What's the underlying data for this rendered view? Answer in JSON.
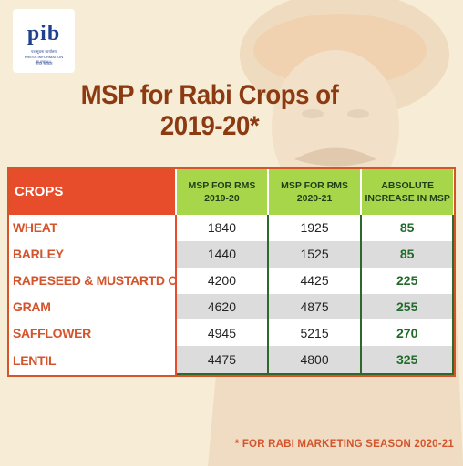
{
  "logo": {
    "wordmark": "pib",
    "line1": "पत्र सूचना कार्यालय",
    "line2": "PRESS INFORMATION BUREAU",
    "line3": "भारत सरकार"
  },
  "title": {
    "line1": "MSP for Rabi Crops of",
    "line2": "2019-20*"
  },
  "table": {
    "headers": {
      "crops": "CROPS",
      "col1_line1": "MSP FOR RMS",
      "col1_line2": "2019-20",
      "col2_line1": "MSP FOR RMS",
      "col2_line2": "2020-21",
      "col3_line1": "ABSOLUTE",
      "col3_line2": "INCREASE IN MSP"
    },
    "rows": [
      {
        "crop": "WHEAT",
        "msp_2019": "1840",
        "msp_2020": "1925",
        "increase": "85"
      },
      {
        "crop": "BARLEY",
        "msp_2019": "1440",
        "msp_2020": "1525",
        "increase": "85"
      },
      {
        "crop": "RAPESEED & MUSTARTD OIL",
        "msp_2019": "4200",
        "msp_2020": "4425",
        "increase": "225"
      },
      {
        "crop": "GRAM",
        "msp_2019": "4620",
        "msp_2020": "4875",
        "increase": "255"
      },
      {
        "crop": "SAFFLOWER",
        "msp_2019": "4945",
        "msp_2020": "5215",
        "increase": "270"
      },
      {
        "crop": "LENTIL",
        "msp_2019": "4475",
        "msp_2020": "4800",
        "increase": "325"
      }
    ]
  },
  "footnote": "* FOR RABI MARKETING SEASON 2020-21",
  "colors": {
    "crops_header": "#e84d2b",
    "value_header": "#a8d64a",
    "crop_text": "#d4542c",
    "title": "#8b3a12",
    "background": "#f7ecd6"
  }
}
